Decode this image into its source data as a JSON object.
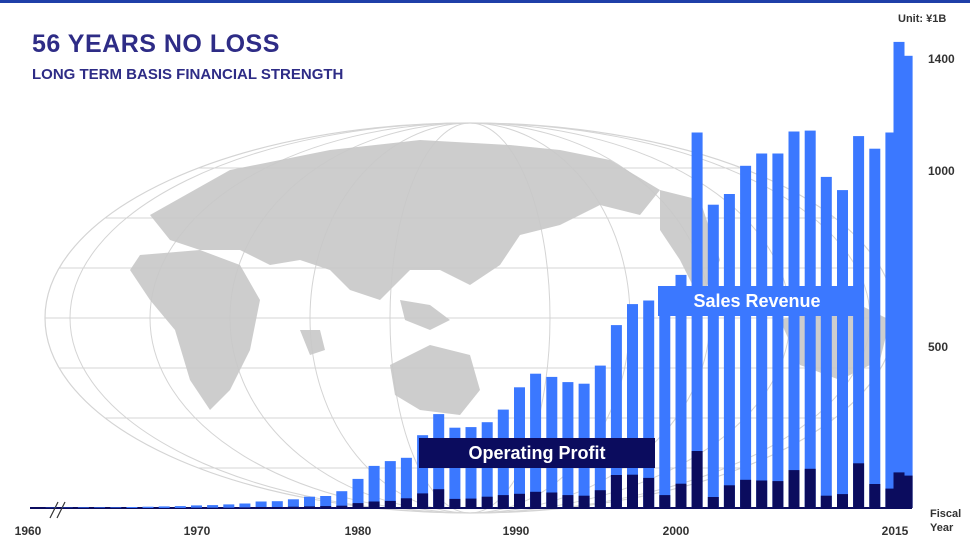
{
  "header": {
    "title": "56 YEARS NO LOSS",
    "subtitle": "LONG TERM BASIS FINANCIAL STRENGTH",
    "unit": "Unit: ¥1B"
  },
  "labels": {
    "sales_revenue": "Sales Revenue",
    "operating_profit": "Operating Profit",
    "fiscal": "Fiscal",
    "year": "Year"
  },
  "colors": {
    "sales": "#3b78ff",
    "profit": "#0b0c5e",
    "title": "#2e2c86",
    "map": "#c8c8c8"
  },
  "chart_data": {
    "type": "bar",
    "title": "56 YEARS NO LOSS",
    "subtitle": "LONG TERM BASIS FINANCIAL STRENGTH",
    "unit": "Unit: ¥1B",
    "xlabel": "Fiscal Year",
    "x_ticks": [
      "1960",
      "1970",
      "1980",
      "1990",
      "2000",
      "2015"
    ],
    "y_ticks": [
      500,
      1000,
      1400
    ],
    "ylim": [
      0,
      1450
    ],
    "grid": false,
    "years": [
      1960,
      1961,
      1962,
      1963,
      1964,
      1965,
      1966,
      1967,
      1968,
      1969,
      1970,
      1971,
      1972,
      1973,
      1974,
      1975,
      1976,
      1977,
      1978,
      1979,
      1980,
      1981,
      1982,
      1983,
      1984,
      1985,
      1986,
      1987,
      1988,
      1989,
      1990,
      1991,
      1992,
      1993,
      1994,
      1995,
      1996,
      1997,
      1998,
      1999,
      2000,
      2001,
      2002,
      2003,
      2004,
      2005,
      2006,
      2007,
      2008,
      2009,
      2010,
      2011,
      2012,
      2013,
      2014,
      2015
    ],
    "series": [
      {
        "name": "Sales Revenue",
        "values": [
          0,
          1,
          1,
          2,
          2,
          2,
          3,
          4,
          5,
          6,
          8,
          9,
          11,
          14,
          20,
          21,
          27,
          35,
          37,
          52,
          90,
          130,
          145,
          155,
          225,
          290,
          248,
          250,
          265,
          304,
          373,
          415,
          405,
          389,
          384,
          440,
          565,
          630,
          641,
          645,
          720,
          1160,
          937,
          970,
          1057,
          1095,
          1095,
          1163,
          1166,
          1023,
          982,
          1149,
          1110,
          1160,
          1397,
          null
        ],
        "box": {
          "from": 1960,
          "to": 2015
        }
      },
      {
        "name": "Operating Profit",
        "values": [
          0,
          0,
          0,
          0,
          0,
          0,
          0,
          0,
          0,
          0,
          1,
          1,
          1,
          2,
          3,
          3,
          4,
          5,
          6,
          7,
          15,
          20,
          22,
          30,
          45,
          58,
          28,
          29,
          35,
          40,
          44,
          50,
          48,
          40,
          38,
          55,
          102,
          103,
          93,
          40,
          75,
          176,
          34,
          70,
          87,
          85,
          83,
          117,
          121,
          38,
          43,
          138,
          74,
          60,
          100,
          null
        ]
      }
    ]
  }
}
